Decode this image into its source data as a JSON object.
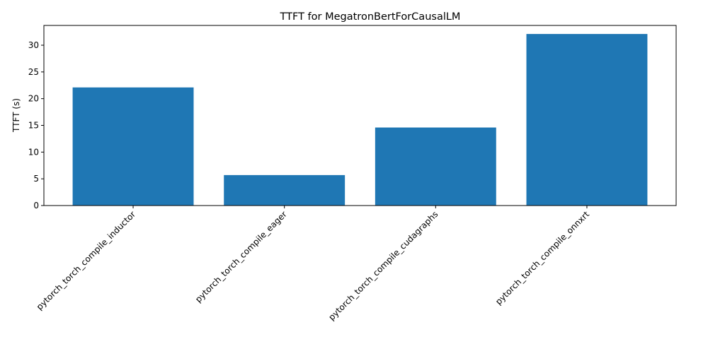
{
  "chart_data": {
    "type": "bar",
    "title": "TTFT for MegatronBertForCausalLM",
    "xlabel": "",
    "ylabel": "TTFT (s)",
    "categories": [
      "pytorch_torch_compile_inductor",
      "pytorch_torch_compile_eager",
      "pytorch_torch_compile_cudagraphs",
      "pytorch_torch_compile_onnxrt"
    ],
    "values": [
      22.1,
      5.7,
      14.6,
      32.1
    ],
    "ylim": [
      0,
      33.7
    ],
    "yticks": [
      0,
      5,
      10,
      15,
      20,
      25,
      30
    ],
    "bar_color": "#1f77b4",
    "grid": false,
    "xtick_rotation_deg": 45
  }
}
